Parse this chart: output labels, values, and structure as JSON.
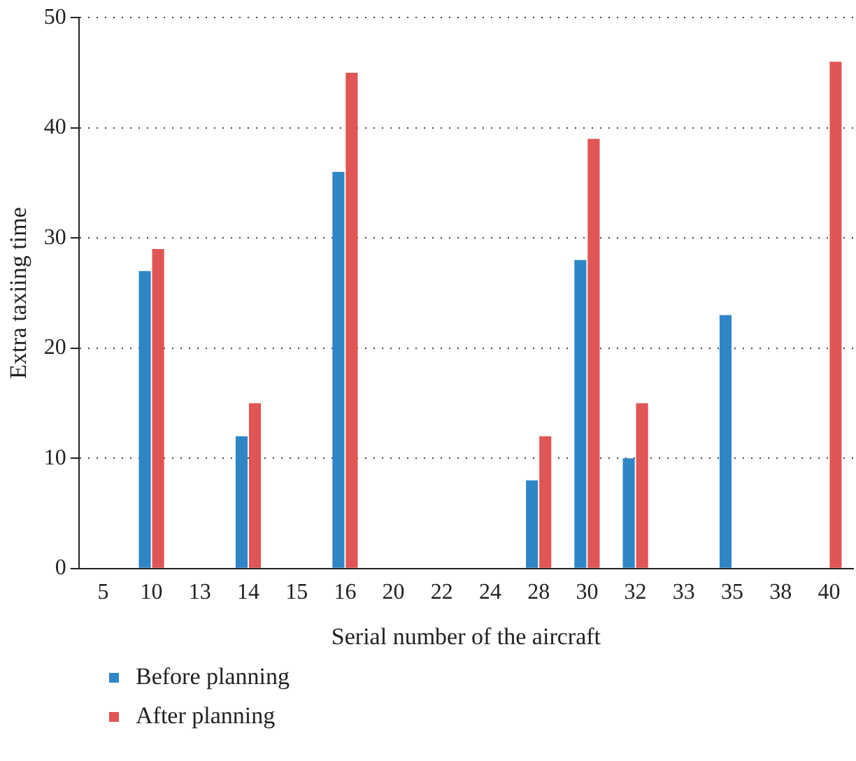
{
  "chart_data": {
    "type": "bar",
    "xlabel": "Serial number of the aircraft",
    "ylabel": "Extra taxiing time",
    "categories": [
      "5",
      "10",
      "13",
      "14",
      "15",
      "16",
      "20",
      "22",
      "24",
      "28",
      "30",
      "32",
      "33",
      "35",
      "38",
      "40"
    ],
    "series": [
      {
        "name": "Before planning",
        "color": "#2f86c6",
        "values": [
          0,
          27,
          0,
          12,
          0,
          36,
          0,
          0,
          0,
          8,
          28,
          10,
          0,
          23,
          0,
          0
        ]
      },
      {
        "name": "After planning",
        "color": "#e05555",
        "values": [
          0,
          29,
          0,
          15,
          0,
          45,
          0,
          0,
          0,
          12,
          39,
          15,
          0,
          0,
          0,
          46
        ]
      }
    ],
    "ylim": [
      0,
      50
    ],
    "yticks": [
      0,
      10,
      20,
      30,
      40,
      50
    ],
    "grid": "y",
    "legend": "bottom left"
  }
}
